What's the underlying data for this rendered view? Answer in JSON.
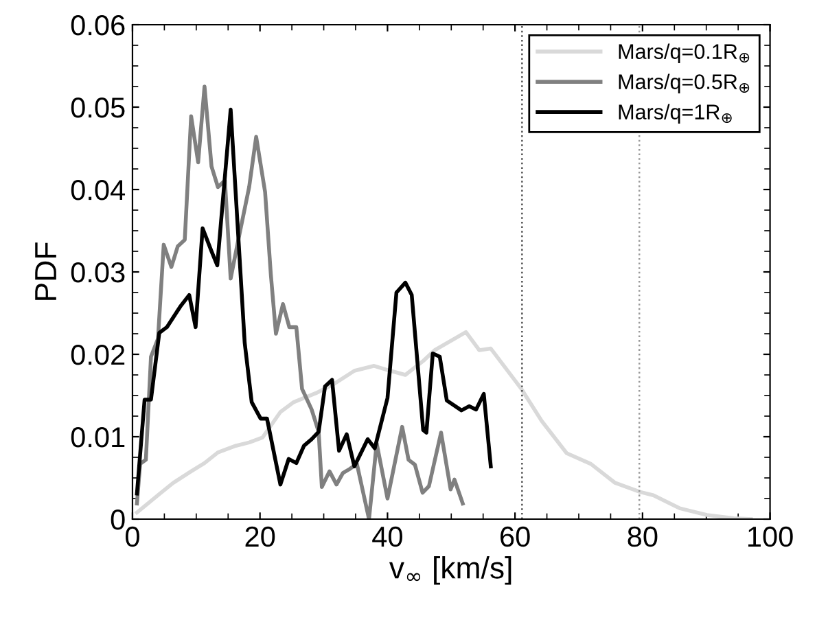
{
  "chart_data": {
    "type": "line",
    "xlabel": "v$_{∞}$ [km/s]",
    "ylabel": "PDF",
    "xlim": [
      0,
      100
    ],
    "ylim": [
      0,
      0.06
    ],
    "xticks": [
      0,
      20,
      40,
      60,
      80,
      100
    ],
    "yticks": [
      0,
      0.01,
      0.02,
      0.03,
      0.04,
      0.05,
      0.06
    ],
    "grid": false,
    "legend": "top right",
    "line_style": "solid",
    "marker": "none",
    "ref_lines": [
      {
        "axis": "x",
        "value": 61.1,
        "color": "#555555",
        "line_style": "dotted"
      },
      {
        "axis": "x",
        "value": 79.5,
        "color": "#999999",
        "line_style": "dotted"
      }
    ],
    "series": [
      {
        "name": "Mars/q=0.1R$_{⊕}$",
        "color": "#d9d9d9",
        "x": [
          0.7,
          4.3,
          6.4,
          9.2,
          11.3,
          13.4,
          16.2,
          18.3,
          20.4,
          23.2,
          25.3,
          28.8,
          31.6,
          34.8,
          37.9,
          40,
          42.8,
          45.6,
          47.4,
          52.3,
          54.4,
          56.2,
          61,
          64.2,
          68.1,
          71.9,
          75.7,
          79.6,
          81.7,
          85.9,
          90.1,
          94.3,
          97
        ],
        "values": [
          0.0008,
          0.0031,
          0.0044,
          0.0058,
          0.0068,
          0.0081,
          0.0089,
          0.0093,
          0.0099,
          0.013,
          0.0142,
          0.0153,
          0.0164,
          0.018,
          0.0186,
          0.0181,
          0.0175,
          0.0192,
          0.0205,
          0.0227,
          0.0205,
          0.0207,
          0.0158,
          0.0119,
          0.008,
          0.0067,
          0.0044,
          0.0033,
          0.0029,
          0.0013,
          0.0005,
          0.0001,
          0
        ]
      },
      {
        "name": "Mars/q=0.5R$_{⊕}$",
        "color": "#808080",
        "x": [
          0.7,
          1.2,
          2.1,
          2.9,
          4,
          4.9,
          6.1,
          7.1,
          8.2,
          9.2,
          10.3,
          11.3,
          12.4,
          13.4,
          14.5,
          15.4,
          16.6,
          18.3,
          19.4,
          20.8,
          21.7,
          22.5,
          23.6,
          24.6,
          25.7,
          26.6,
          28.1,
          29.2,
          29.7,
          30.9,
          32,
          33,
          34.1,
          35.2,
          37.1,
          38.3,
          40,
          42.3,
          43.3,
          44.3,
          45.5,
          46.5,
          48.4,
          49.9,
          50.5,
          51.8
        ],
        "values": [
          0.0019,
          0.0067,
          0.0072,
          0.0197,
          0.0219,
          0.0333,
          0.0306,
          0.0331,
          0.0339,
          0.0489,
          0.0433,
          0.0525,
          0.0428,
          0.0403,
          0.0411,
          0.0292,
          0.0339,
          0.0403,
          0.0464,
          0.0397,
          0.0297,
          0.0225,
          0.0261,
          0.0233,
          0.0233,
          0.0158,
          0.0133,
          0.0106,
          0.0039,
          0.0058,
          0.0042,
          0.0056,
          0.0061,
          0.0067,
          0,
          0.0092,
          0.0025,
          0.0112,
          0.0072,
          0.0066,
          0.0032,
          0.004,
          0.0105,
          0.0036,
          0.0048,
          0.0019
        ]
      },
      {
        "name": "Mars/q=1R$_{⊕}$",
        "color": "#000000",
        "x": [
          0.7,
          1.9,
          2.9,
          4.2,
          5.4,
          7.5,
          8.9,
          9.9,
          11,
          12.4,
          13.3,
          15.4,
          17.6,
          18.7,
          20.1,
          21.1,
          23.2,
          24.5,
          25.7,
          26.9,
          28.1,
          29.2,
          30.2,
          31.3,
          32.4,
          33.6,
          34.8,
          36.9,
          38,
          40,
          41.4,
          42.8,
          43.8,
          45.6,
          46.1,
          47.1,
          48.2,
          49.3,
          51.6,
          52.8,
          53.9,
          55.1,
          56.2
        ],
        "values": [
          0.0031,
          0.0145,
          0.0145,
          0.0226,
          0.0233,
          0.0258,
          0.0272,
          0.0233,
          0.0353,
          0.0325,
          0.0308,
          0.0497,
          0.0214,
          0.0142,
          0.0122,
          0.0122,
          0.0042,
          0.0073,
          0.0068,
          0.0089,
          0.0097,
          0.0106,
          0.0161,
          0.0169,
          0.0083,
          0.0103,
          0.0064,
          0.0097,
          0.0086,
          0.0147,
          0.0275,
          0.0287,
          0.0272,
          0.0108,
          0.0105,
          0.0201,
          0.0197,
          0.0144,
          0.0132,
          0.0137,
          0.0133,
          0.0152,
          0.0064
        ]
      }
    ]
  }
}
